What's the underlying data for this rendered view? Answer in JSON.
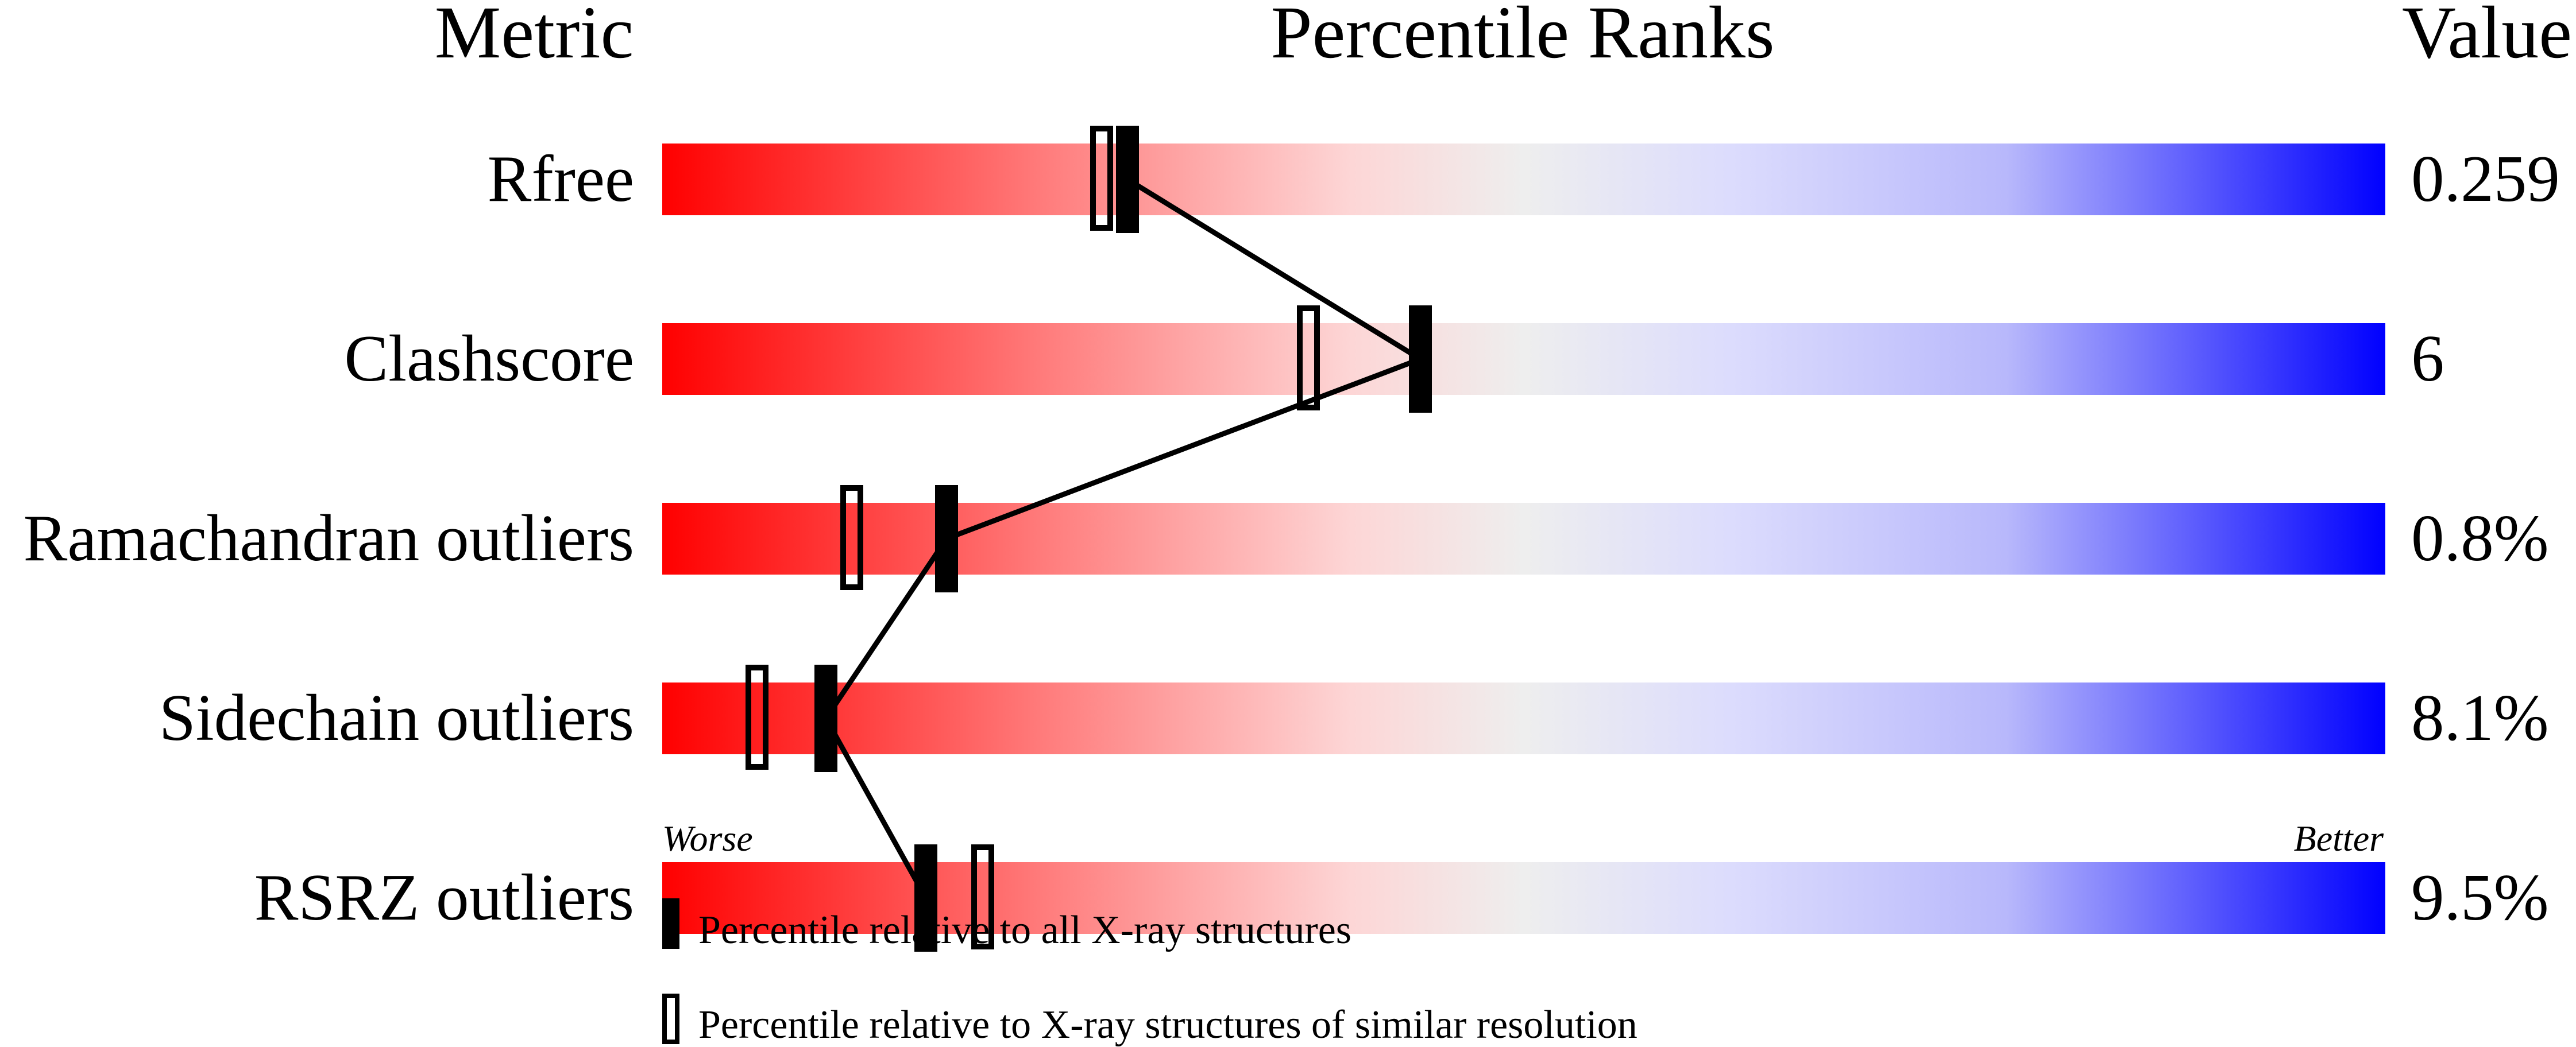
{
  "chart_data": {
    "type": "percentile-bar",
    "headers": {
      "metric": "Metric",
      "percentile": "Percentile Ranks",
      "value": "Value"
    },
    "xlim": [
      0,
      100
    ],
    "metrics": [
      {
        "name": "Rfree",
        "value": "0.259",
        "percentile_all": 27,
        "percentile_similar": 25.5
      },
      {
        "name": "Clashscore",
        "value": "6",
        "percentile_all": 44,
        "percentile_similar": 37.5
      },
      {
        "name": "Ramachandran outliers",
        "value": "0.8%",
        "percentile_all": 16.5,
        "percentile_similar": 11
      },
      {
        "name": "Sidechain outliers",
        "value": "8.1%",
        "percentile_all": 9.5,
        "percentile_similar": 5.5
      },
      {
        "name": "RSRZ outliers",
        "value": "9.5%",
        "percentile_all": 15.3,
        "percentile_similar": 18.6
      }
    ],
    "axis_labels": {
      "worse": "Worse",
      "better": "Better"
    },
    "legend": {
      "all": "Percentile relative to all X-ray structures",
      "similar": "Percentile relative to X-ray structures of similar resolution"
    },
    "colors": {
      "worse": "#ff0000",
      "middle": "#eeeeee",
      "better": "#0000ff",
      "marker": "#000000"
    }
  }
}
